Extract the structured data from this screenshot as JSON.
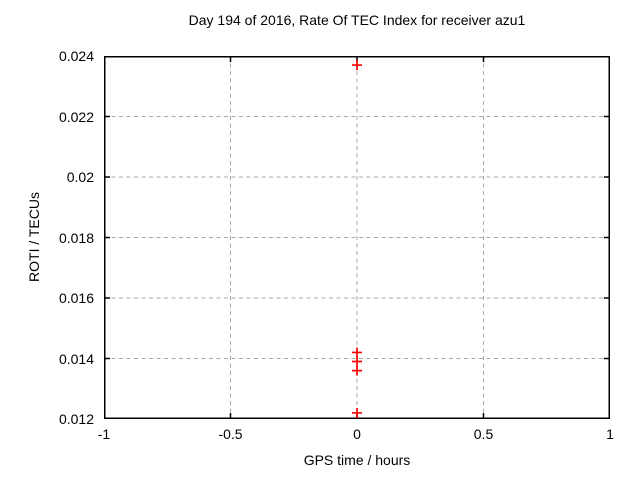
{
  "chart_data": {
    "type": "scatter",
    "title": "Day 194 of 2016, Rate Of TEC Index for receiver azu1",
    "xlabel": "GPS time / hours",
    "ylabel": "ROTI / TECUs",
    "xlim": [
      -1,
      1
    ],
    "ylim": [
      0.012,
      0.024
    ],
    "xticks": [
      -1,
      -0.5,
      0,
      0.5,
      1
    ],
    "xtick_labels": [
      "-1",
      "-0.5",
      "0",
      "0.5",
      "1"
    ],
    "yticks": [
      0.012,
      0.014,
      0.016,
      0.018,
      0.02,
      0.022,
      0.024
    ],
    "ytick_labels": [
      "0.012",
      "0.014",
      "0.016",
      "0.018",
      "0.02",
      "0.022",
      "0.024"
    ],
    "grid": true,
    "legend_position": "none",
    "marker": "plus",
    "colors": {
      "marker": "#ff0000",
      "grid": "#a8a8a8",
      "axis": "#000000",
      "background": "#ffffff",
      "text": "#000000"
    },
    "series": [
      {
        "name": "ROTI",
        "points": [
          {
            "x": 0,
            "y": 0.0237
          },
          {
            "x": 0,
            "y": 0.0142
          },
          {
            "x": 0,
            "y": 0.0139
          },
          {
            "x": 0,
            "y": 0.0136
          },
          {
            "x": 0,
            "y": 0.0122
          }
        ]
      }
    ]
  }
}
